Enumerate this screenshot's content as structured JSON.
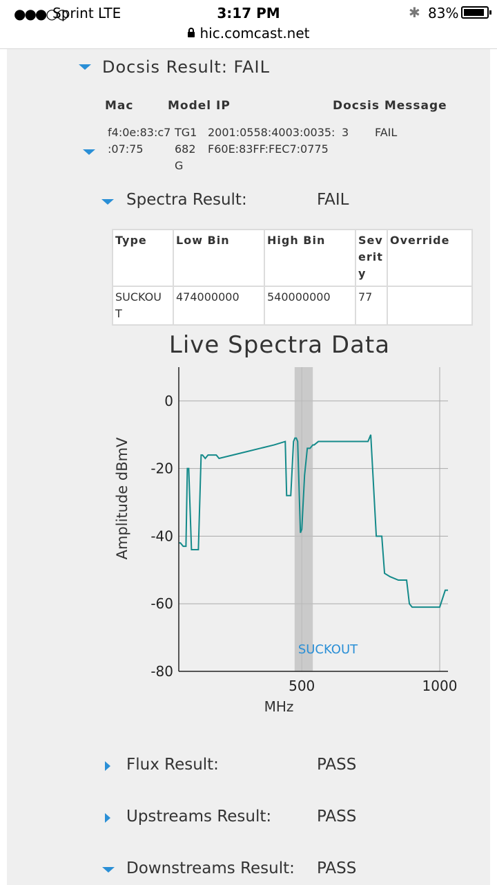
{
  "status_bar": {
    "signal": "●●●○○",
    "carrier": "Sprint  LTE",
    "time": "3:17 PM",
    "battery": "83%"
  },
  "browser": {
    "url": "hic.comcast.net"
  },
  "docsis": {
    "title": "Docsis Result: FAIL",
    "columns": [
      "Mac",
      "Model IP",
      "Docsis Message"
    ],
    "row": {
      "mac_line1": "f4:0e:83:c7",
      "mac_line2": ":07:75",
      "model_line1": "TG1",
      "model_line2": "682",
      "model_line3": "G",
      "ip_line1": "2001:0558:4003:0035:",
      "ip_line2": "F60E:83FF:FEC7:0775",
      "code": "3",
      "message": "FAIL"
    }
  },
  "spectra": {
    "label": "Spectra Result:",
    "value": "FAIL",
    "table": {
      "headers": [
        "Type",
        "Low Bin",
        "High Bin",
        "Sev erit y",
        "Override"
      ],
      "row": [
        "SUCKOU T",
        "474000000",
        "540000000",
        "77",
        ""
      ]
    }
  },
  "chart_data": {
    "type": "line",
    "title": "Live Spectra Data",
    "xlabel": "MHz",
    "ylabel": "Amplitude dBmV",
    "xlim": [
      54,
      1030
    ],
    "ylim": [
      -80,
      10
    ],
    "x_ticks": [
      500,
      1000
    ],
    "y_ticks": [
      0,
      -20,
      -40,
      -60,
      -80
    ],
    "grid": true,
    "line_color": "#148a8a",
    "band": {
      "label": "SUCKOUT",
      "x_start": 474,
      "x_end": 540,
      "color": "#bdbdbd",
      "label_color": "#2a8fd6"
    },
    "series": [
      {
        "x": [
          54,
          60,
          70,
          80,
          85,
          90,
          100,
          105,
          110,
          115,
          120,
          125,
          135,
          140,
          150,
          160,
          170,
          190,
          200,
          250,
          300,
          350,
          400,
          440,
          445,
          460,
          470,
          475,
          480,
          485,
          495,
          500,
          510,
          520,
          530,
          540,
          545,
          560,
          600,
          650,
          660,
          700,
          730,
          740,
          750,
          770,
          790,
          800,
          820,
          850,
          880,
          890,
          900,
          930,
          960,
          980,
          1000,
          1020,
          1030
        ],
        "y": [
          -42,
          -42,
          -43,
          -43,
          -20,
          -20,
          -44,
          -44,
          -44,
          -44,
          -44,
          -44,
          -16,
          -16,
          -17,
          -16,
          -16,
          -16,
          -17,
          -16,
          -15,
          -14,
          -13,
          -12,
          -28,
          -28,
          -12,
          -11,
          -11,
          -12,
          -39,
          -38,
          -22,
          -14,
          -14,
          -13,
          -13,
          -12,
          -12,
          -12,
          -12,
          -12,
          -12,
          -12,
          -10,
          -40,
          -40,
          -51,
          -52,
          -53,
          -53,
          -60,
          -61,
          -61,
          -61,
          -61,
          -61,
          -56,
          -56
        ]
      }
    ]
  },
  "sections": [
    {
      "label": "Flux Result:",
      "value": "PASS",
      "expanded": false
    },
    {
      "label": "Upstreams Result:",
      "value": "PASS",
      "expanded": false
    },
    {
      "label": "Downstreams Result:",
      "value": "PASS",
      "expanded": true
    }
  ]
}
